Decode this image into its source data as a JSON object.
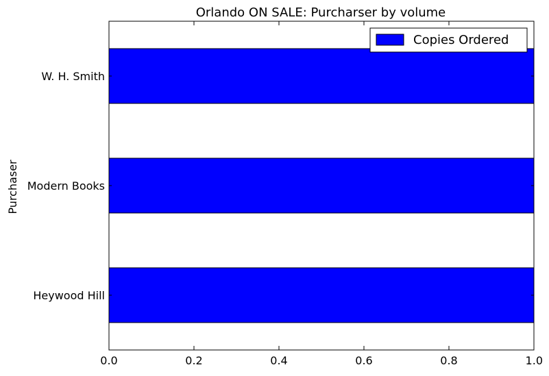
{
  "chart_data": {
    "type": "bar",
    "orientation": "horizontal",
    "title": "Orlando ON SALE: Purcharser by volume",
    "xlabel": "",
    "ylabel": "Purchaser",
    "categories": [
      "Heywood Hill",
      "Modern Books",
      "W. H. Smith"
    ],
    "series": [
      {
        "name": "Copies Ordered",
        "values": [
          1,
          1,
          1
        ],
        "color": "#0000ff"
      }
    ],
    "xlim": [
      0.0,
      1.0
    ],
    "xticks": [
      "0.0",
      "0.2",
      "0.4",
      "0.6",
      "0.8",
      "1.0"
    ],
    "grid": false,
    "legend_position": "top-right"
  }
}
